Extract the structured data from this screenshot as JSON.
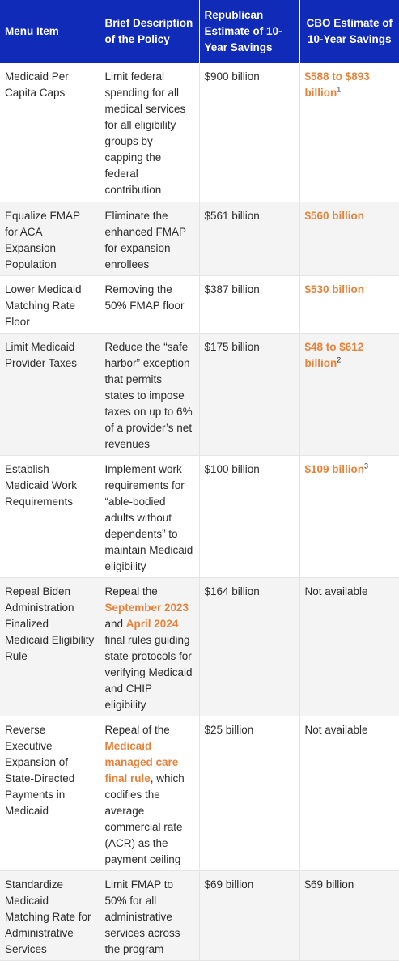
{
  "headers": {
    "menu_item": "Menu Item",
    "description": "Brief Description of the Policy",
    "republican_estimate": "Republican Estimate of 10-Year Savings",
    "cbo_estimate": "CBO Estimate of 10-Year Savings"
  },
  "rows": [
    {
      "item": "Medicaid Per Capita Caps",
      "desc": "Limit federal spending for all medical services for all eligibility groups by capping the federal contribution",
      "rep": "$900 billion",
      "cbo": "$588 to $893 billion",
      "cbo_note": "1"
    },
    {
      "item": "Equalize FMAP for ACA Expansion Population",
      "desc": "Eliminate the enhanced FMAP for expansion enrollees",
      "rep": "$561 billion",
      "cbo": "$560 billion"
    },
    {
      "item": "Lower Medicaid Matching Rate Floor",
      "desc": "Removing the 50% FMAP floor",
      "rep": "$387 billion",
      "cbo": "$530 billion"
    },
    {
      "item": "Limit Medicaid Provider Taxes",
      "desc": "Reduce the “safe harbor” exception that permits states to impose taxes on up to 6% of a provider’s net revenues",
      "rep": "$175 billion",
      "cbo": "$48 to $612 billion",
      "cbo_note": "2"
    },
    {
      "item": "Establish Medicaid Work Requirements",
      "desc": "Implement work requirements for “able-bodied adults without dependents” to maintain Medicaid eligibility",
      "rep": "$100 billion",
      "cbo": "$109 billion",
      "cbo_note": "3"
    },
    {
      "item": "Repeal Biden Administration Finalized Medicaid Eligibility Rule",
      "desc_pre": "Repeal the",
      "desc_link1": "September 2023",
      "desc_mid": "and",
      "desc_link2": "April 2024",
      "desc_post": "final rules guiding state protocols for verifying Medicaid and CHIP eligibility",
      "rep": "$164 billion",
      "cbo": "Not available"
    },
    {
      "item": "Reverse Executive Expansion of State-Directed Payments in Medicaid",
      "desc_pre": "Repeal of the",
      "desc_link1": "Medicaid managed care final rule",
      "desc_post": ", which codifies the average commercial rate (ACR) as the payment ceiling",
      "rep": "$25 billion",
      "cbo": "Not available"
    },
    {
      "item": "Standardize Medicaid Matching Rate for Administrative Services",
      "desc": "Limit FMAP to 50% for all administrative services across the program",
      "rep": "$69 billion",
      "cbo": "$69 billion"
    }
  ],
  "colors": {
    "header_bg": "#0f2bb8",
    "header_text": "#ffffff",
    "highlight": "#e8823a",
    "row_alt": "#f4f4f4"
  }
}
